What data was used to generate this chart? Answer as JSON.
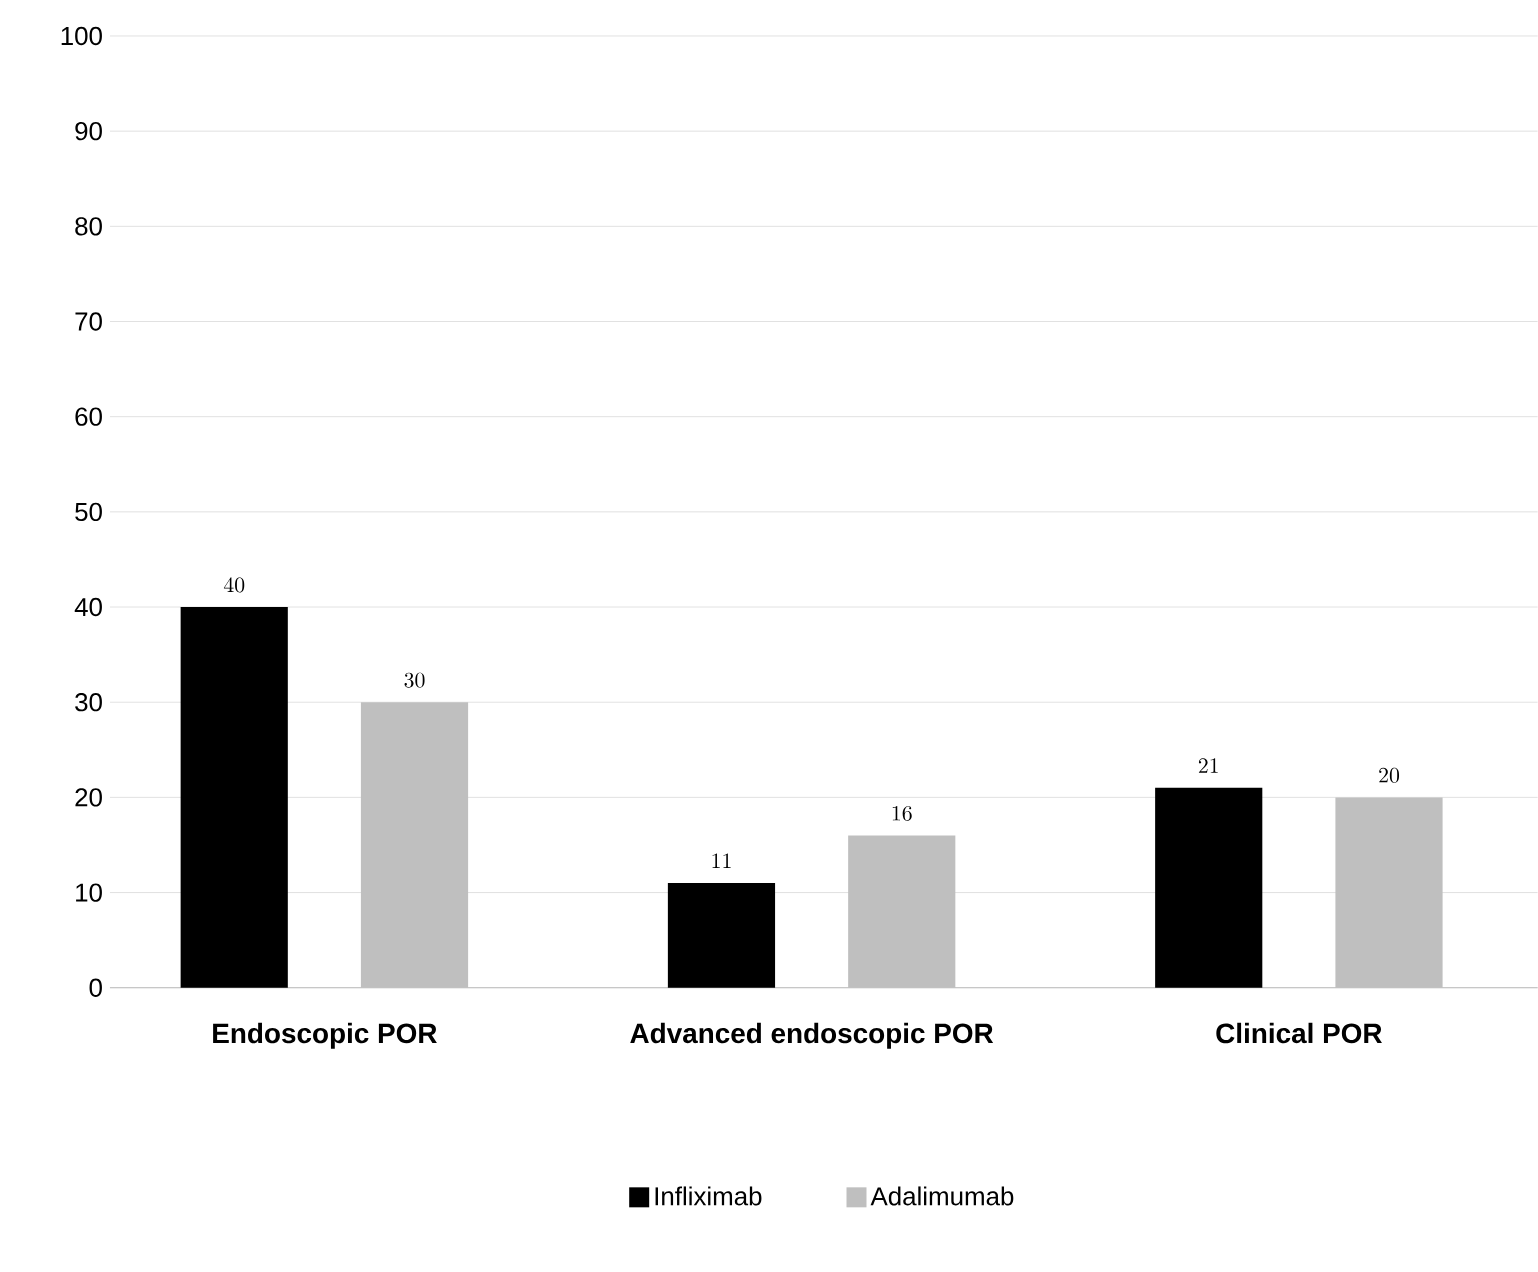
{
  "chart_data": {
    "type": "bar",
    "categories": [
      "Endoscopic POR",
      "Advanced endoscopic POR",
      "Clinical POR"
    ],
    "series": [
      {
        "name": "Infliximab",
        "color": "#000000",
        "values": [
          40,
          11,
          21
        ]
      },
      {
        "name": "Adalimumab",
        "color": "#bfbfbf",
        "values": [
          30,
          16,
          20
        ]
      }
    ],
    "ylim": [
      0,
      100
    ],
    "yticks": [
      0,
      10,
      20,
      30,
      40,
      50,
      60,
      70,
      80,
      90,
      100
    ],
    "grid": "y",
    "legend": "bottom",
    "data_labels": true
  }
}
